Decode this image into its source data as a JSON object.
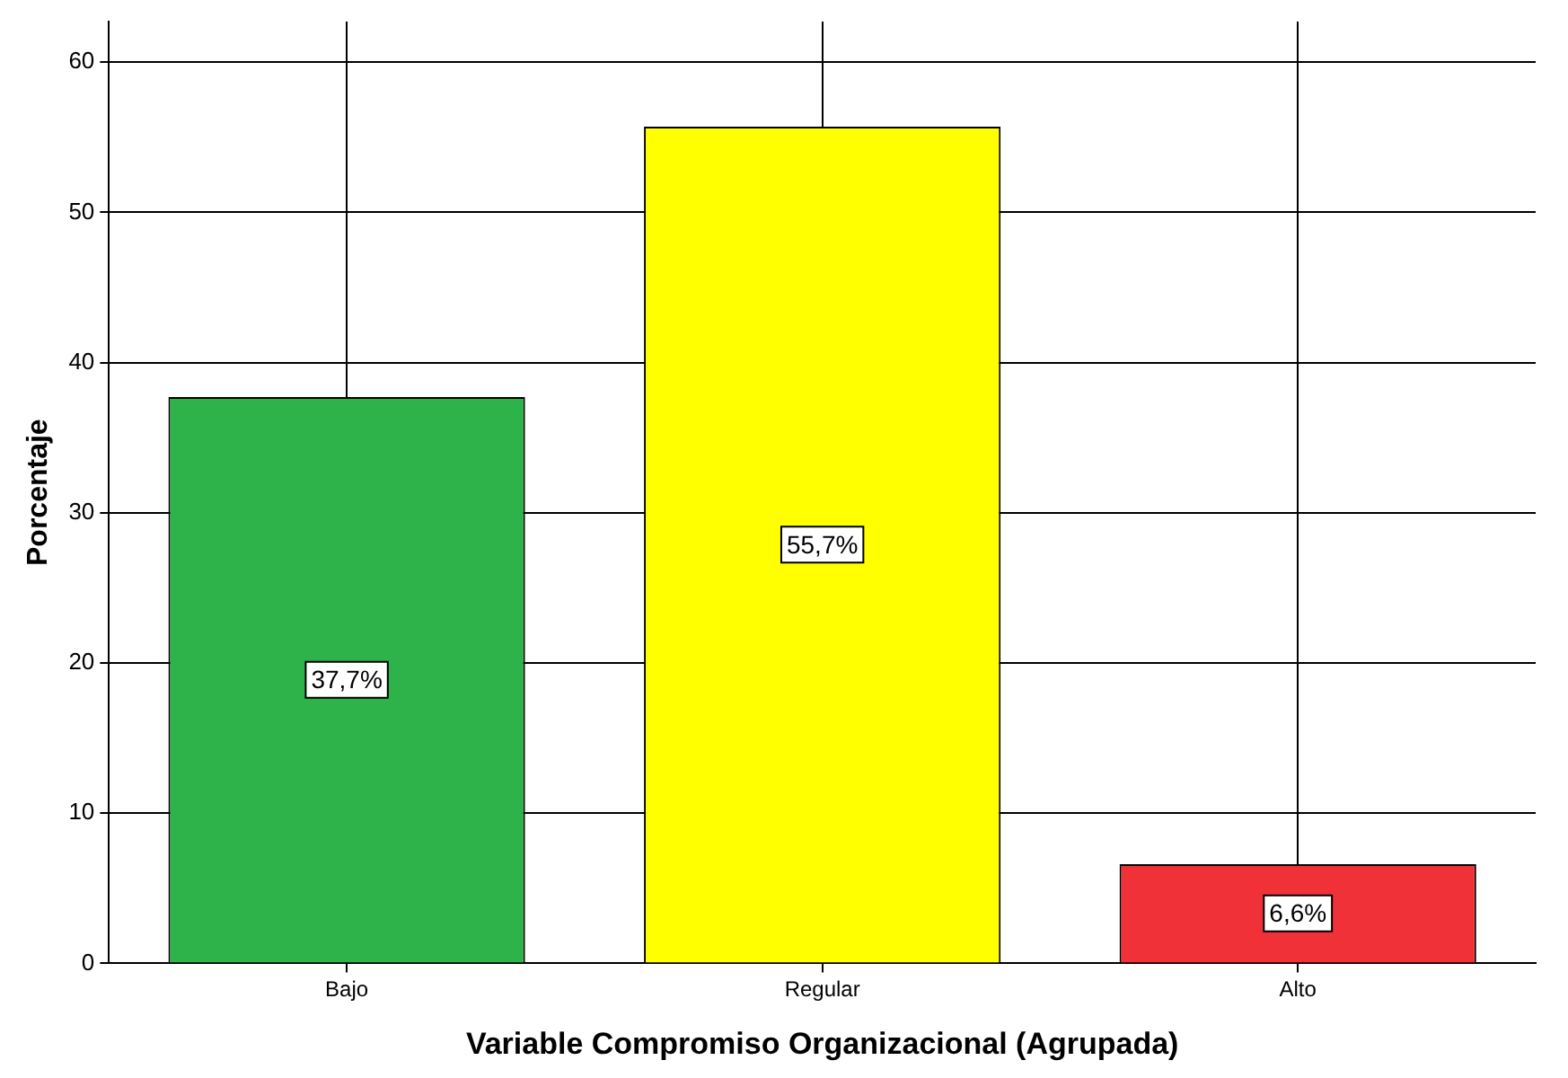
{
  "chart_data": {
    "type": "bar",
    "xlabel": "Variable Compromiso Organizacional (Agrupada)",
    "ylabel": "Porcentaje",
    "categories": [
      "Bajo",
      "Regular",
      "Alto"
    ],
    "values": [
      37.7,
      55.7,
      6.6
    ],
    "colors": [
      "#2db34a",
      "#ffff00",
      "#f03238"
    ],
    "value_labels": [
      "37,7%",
      "55,7%",
      "6,6%"
    ],
    "ylim": [
      0,
      62.7
    ],
    "yticks": [
      0,
      10,
      20,
      30,
      40,
      50,
      60
    ],
    "grid": true,
    "legend": false
  }
}
